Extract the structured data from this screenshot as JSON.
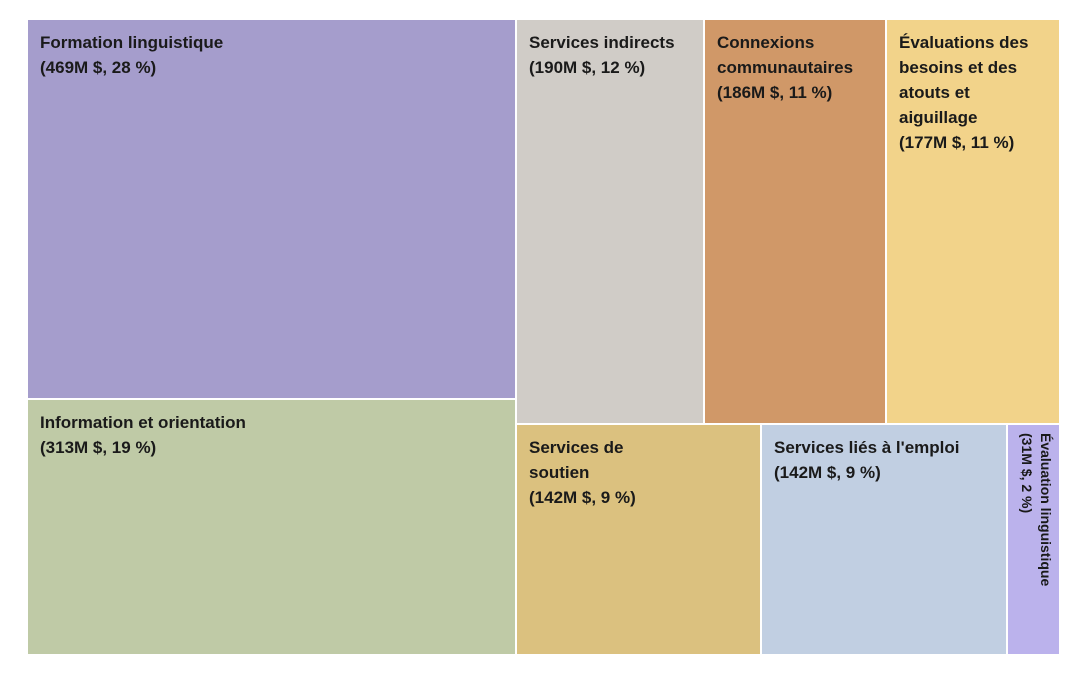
{
  "chart_data": {
    "type": "treemap",
    "unit": "M $",
    "items": [
      {
        "label_lines": [
          "Formation linguistique",
          "(469M $, 28 %)"
        ],
        "value": 469,
        "percent": 28,
        "color": "#a59dcc"
      },
      {
        "label_lines": [
          "Information et orientation",
          "(313M $, 19 %)"
        ],
        "value": 313,
        "percent": 19,
        "color": "#bfcaa6"
      },
      {
        "label_lines": [
          "Services indirects",
          "(190M $, 12 %)"
        ],
        "value": 190,
        "percent": 12,
        "color": "#d0ccc7"
      },
      {
        "label_lines": [
          "Connexions",
          "communautaires",
          "(186M $, 11 %)"
        ],
        "value": 186,
        "percent": 11,
        "color": "#d09868"
      },
      {
        "label_lines": [
          "Évaluations des",
          "besoins et des",
          "atouts et",
          "aiguillage",
          "(177M $, 11 %)"
        ],
        "value": 177,
        "percent": 11,
        "color": "#f2d38a"
      },
      {
        "label_lines": [
          "Services de",
          "soutien",
          "(142M $, 9 %)"
        ],
        "value": 142,
        "percent": 9,
        "color": "#dbc17f"
      },
      {
        "label_lines": [
          "Services liés à l'emploi",
          "(142M $, 9 %)"
        ],
        "value": 142,
        "percent": 9,
        "color": "#c1cfe2"
      },
      {
        "label_lines": [
          "Évaluation linguistique",
          "(31M $, 2 %)"
        ],
        "value": 31,
        "percent": 2,
        "color": "#bbb2ec",
        "vertical": true
      }
    ]
  }
}
